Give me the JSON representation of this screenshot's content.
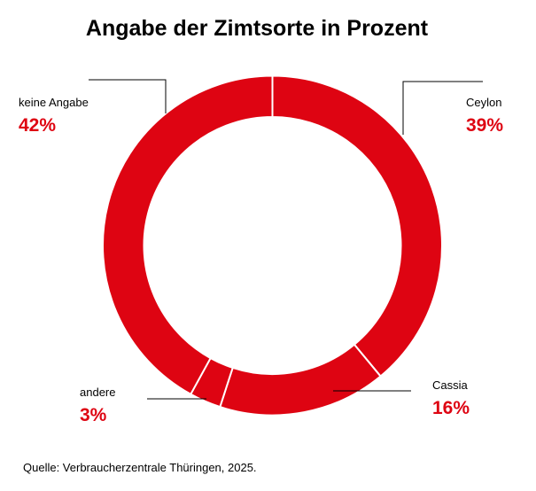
{
  "chart_data": {
    "type": "pie",
    "variant": "donut",
    "title": "Angabe der Zimtsorte in Prozent",
    "slices": [
      {
        "label": "Ceylon",
        "value": 39,
        "display": "39%"
      },
      {
        "label": "Cassia",
        "value": 16,
        "display": "16%"
      },
      {
        "label": "andere",
        "value": 3,
        "display": "3%"
      },
      {
        "label": "keine Angabe",
        "value": 42,
        "display": "42%"
      }
    ],
    "start": "12 o'clock, clockwise",
    "colors": {
      "slice": "#de0412",
      "separator": "#ffffff",
      "label_value": "#de0412"
    },
    "source": "Quelle: Verbraucherzentrale Thüringen, 2025."
  }
}
